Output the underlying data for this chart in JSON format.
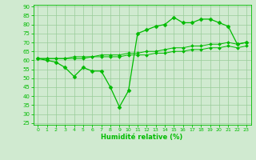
{
  "x": [
    0,
    1,
    2,
    3,
    4,
    5,
    6,
    7,
    8,
    9,
    10,
    11,
    12,
    13,
    14,
    15,
    16,
    17,
    18,
    19,
    20,
    21,
    22,
    23
  ],
  "y_main": [
    61,
    60,
    59,
    56,
    51,
    56,
    54,
    54,
    45,
    34,
    43,
    75,
    77,
    79,
    80,
    84,
    81,
    81,
    83,
    83,
    81,
    79,
    69,
    70
  ],
  "y_smooth1": [
    61,
    61,
    61,
    61,
    62,
    62,
    62,
    63,
    63,
    63,
    64,
    64,
    65,
    65,
    66,
    67,
    67,
    68,
    68,
    69,
    69,
    70,
    69,
    70
  ],
  "y_smooth2": [
    61,
    61,
    61,
    61,
    61,
    61,
    62,
    62,
    62,
    62,
    63,
    63,
    63,
    64,
    64,
    65,
    65,
    66,
    66,
    67,
    67,
    68,
    67,
    68
  ],
  "xlim": [
    -0.5,
    23.5
  ],
  "ylim": [
    24,
    91
  ],
  "yticks": [
    25,
    30,
    35,
    40,
    45,
    50,
    55,
    60,
    65,
    70,
    75,
    80,
    85,
    90
  ],
  "xticks": [
    0,
    1,
    2,
    3,
    4,
    5,
    6,
    7,
    8,
    9,
    10,
    11,
    12,
    13,
    14,
    15,
    16,
    17,
    18,
    19,
    20,
    21,
    22,
    23
  ],
  "xlabel": "Humidité relative (%)",
  "line_color": "#00bb00",
  "bg_color": "#d0ead0",
  "grid_color": "#99cc99",
  "marker": "D",
  "markersize": 2.5,
  "tick_fontsize": 5,
  "label_fontsize": 6
}
